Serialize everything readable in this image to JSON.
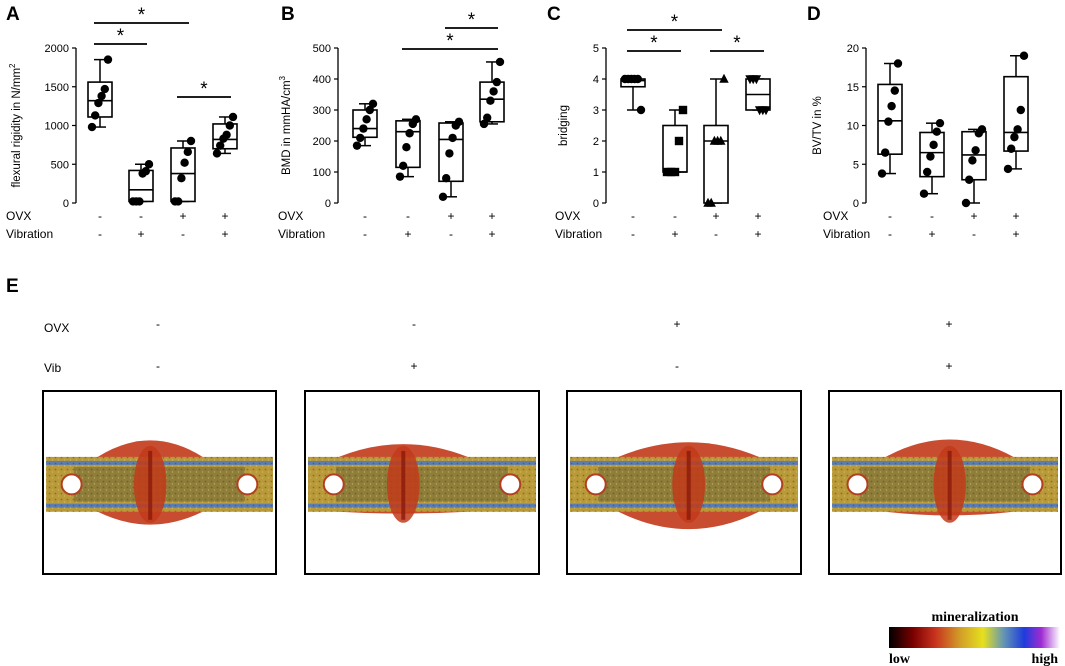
{
  "chart_data": [
    {
      "type": "boxplot",
      "panel": "A",
      "ylabel": "flexural rigidity in N/mm",
      "ylabel_superscript": "2",
      "ylim": [
        0,
        2000
      ],
      "yticks": [
        "0",
        "500",
        "1000",
        "1500",
        "2000"
      ],
      "conditions": [
        {
          "label": "OVX",
          "values": [
            "-",
            "-",
            "+",
            "+"
          ]
        },
        {
          "label": "Vibration",
          "values": [
            "-",
            "+",
            "-",
            "+"
          ]
        }
      ],
      "groups": [
        {
          "min": 980,
          "q1": 1110,
          "median": 1320,
          "q3": 1560,
          "max": 1850,
          "points": [
            980,
            1130,
            1290,
            1380,
            1470,
            1850
          ],
          "marker": "circle"
        },
        {
          "min": 20,
          "q1": 20,
          "median": 170,
          "q3": 420,
          "max": 500,
          "points": [
            20,
            20,
            20,
            380,
            410,
            500
          ],
          "marker": "circle"
        },
        {
          "min": 20,
          "q1": 20,
          "median": 380,
          "q3": 710,
          "max": 800,
          "points": [
            20,
            20,
            320,
            520,
            660,
            800
          ],
          "marker": "circle"
        },
        {
          "min": 640,
          "q1": 700,
          "median": 820,
          "q3": 1020,
          "max": 1110,
          "points": [
            640,
            740,
            830,
            880,
            1000,
            1110
          ],
          "marker": "circle"
        }
      ],
      "significance": [
        {
          "from": 1,
          "to": 2,
          "label": "*"
        },
        {
          "from": 1,
          "to": 3,
          "label": "*"
        },
        {
          "from": 3,
          "to": 4,
          "label": "*"
        }
      ]
    },
    {
      "type": "boxplot",
      "panel": "B",
      "ylabel": "BMD in mmHA/cm",
      "ylabel_superscript": "3",
      "ylim": [
        0,
        500
      ],
      "yticks": [
        "0",
        "100",
        "200",
        "300",
        "400",
        "500"
      ],
      "conditions": [
        {
          "label": "OVX",
          "values": [
            "-",
            "-",
            "+",
            "+"
          ]
        },
        {
          "label": "Vibration",
          "values": [
            "-",
            "+",
            "-",
            "+"
          ]
        }
      ],
      "groups": [
        {
          "min": 185,
          "q1": 212,
          "median": 240,
          "q3": 300,
          "max": 320,
          "points": [
            185,
            210,
            240,
            270,
            300,
            320
          ],
          "marker": "circle"
        },
        {
          "min": 85,
          "q1": 115,
          "median": 230,
          "q3": 265,
          "max": 270,
          "points": [
            85,
            120,
            180,
            225,
            255,
            270
          ],
          "marker": "circle"
        },
        {
          "min": 20,
          "q1": 70,
          "median": 205,
          "q3": 258,
          "max": 262,
          "points": [
            20,
            80,
            160,
            210,
            250,
            262
          ],
          "marker": "circle"
        },
        {
          "min": 255,
          "q1": 262,
          "median": 335,
          "q3": 390,
          "max": 455,
          "points": [
            255,
            275,
            330,
            360,
            390,
            455
          ],
          "marker": "circle"
        }
      ],
      "significance": [
        {
          "from": 3,
          "to": 4,
          "label": "*"
        },
        {
          "from": 2,
          "to": 4,
          "label": "*"
        }
      ]
    },
    {
      "type": "boxplot",
      "panel": "C",
      "ylabel": "bridging",
      "ylabel_superscript": "",
      "ylim": [
        0,
        5
      ],
      "yticks": [
        "0",
        "1",
        "2",
        "3",
        "4",
        "5"
      ],
      "conditions": [
        {
          "label": "OVX",
          "values": [
            "-",
            "-",
            "+",
            "+"
          ]
        },
        {
          "label": "Vibration",
          "values": [
            "-",
            "+",
            "-",
            "+"
          ]
        }
      ],
      "groups": [
        {
          "min": 3,
          "q1": 3.75,
          "median": 3.95,
          "q3": 4,
          "max": 4,
          "points": [
            4,
            4,
            4,
            4,
            4,
            3
          ],
          "marker": "circle"
        },
        {
          "min": 1,
          "q1": 1,
          "median": 1,
          "q3": 2.5,
          "max": 3,
          "points": [
            1,
            1,
            1,
            2,
            3
          ],
          "marker": "square"
        },
        {
          "min": 0,
          "q1": 0,
          "median": 2,
          "q3": 2.5,
          "max": 4,
          "points": [
            0,
            0,
            2,
            2,
            2,
            4
          ],
          "marker": "triangle-up"
        },
        {
          "min": 3,
          "q1": 3,
          "median": 3.5,
          "q3": 4,
          "max": 4,
          "points": [
            4,
            4,
            4,
            3,
            3,
            3
          ],
          "marker": "triangle-down"
        }
      ],
      "significance": [
        {
          "from": 1,
          "to": 2,
          "label": "*"
        },
        {
          "from": 1,
          "to": 3,
          "label": "*"
        },
        {
          "from": 3,
          "to": 4,
          "label": "*"
        }
      ]
    },
    {
      "type": "boxplot",
      "panel": "D",
      "ylabel": "BV/TV in %",
      "ylabel_superscript": "",
      "ylim": [
        0,
        20
      ],
      "yticks": [
        "0",
        "5",
        "10",
        "15",
        "20"
      ],
      "conditions": [
        {
          "label": "OVX",
          "values": [
            "-",
            "-",
            "+",
            "+"
          ]
        },
        {
          "label": "Vibration",
          "values": [
            "-",
            "+",
            "-",
            "+"
          ]
        }
      ],
      "groups": [
        {
          "min": 3.8,
          "q1": 6.3,
          "median": 10.6,
          "q3": 15.3,
          "max": 18,
          "points": [
            3.8,
            6.5,
            10.5,
            12.5,
            14.5,
            18
          ],
          "marker": "circle"
        },
        {
          "min": 1.2,
          "q1": 3.4,
          "median": 6.5,
          "q3": 9.1,
          "max": 10.3,
          "points": [
            1.2,
            4,
            6,
            7.5,
            9.2,
            10.3
          ],
          "marker": "circle"
        },
        {
          "min": 0,
          "q1": 3,
          "median": 6.2,
          "q3": 9.2,
          "max": 9.5,
          "points": [
            0,
            3,
            5.5,
            6.8,
            9,
            9.5
          ],
          "marker": "circle"
        },
        {
          "min": 4.4,
          "q1": 6.7,
          "median": 9.1,
          "q3": 16.3,
          "max": 19,
          "points": [
            4.4,
            7,
            8.5,
            9.5,
            12,
            19
          ],
          "marker": "circle"
        }
      ],
      "significance": []
    }
  ],
  "panels": {
    "A": "A",
    "B": "B",
    "C": "C",
    "D": "D",
    "E": "E"
  },
  "panel_e": {
    "row_labels": {
      "ovx": "OVX",
      "vib": "Vib"
    },
    "columns": [
      {
        "ovx": "-",
        "vib": "-"
      },
      {
        "ovx": "-",
        "vib": "+"
      },
      {
        "ovx": "+",
        "vib": "-"
      },
      {
        "ovx": "+",
        "vib": "+"
      }
    ],
    "legend": {
      "title": "mineralization",
      "low": "low",
      "high": "high"
    },
    "colors": {
      "bone_gold": "#b89a3a",
      "bone_yellow": "#d9c24a",
      "callus_red": "#c23a1a",
      "cortex_blue": "#4a78c8",
      "marrow_olive": "#8a7a3c",
      "gradient": [
        "#000000",
        "#7a0000",
        "#c8321e",
        "#d2a028",
        "#e6e01e",
        "#6496b4",
        "#1e3cdc",
        "#a02ad2",
        "#ffffff"
      ]
    }
  }
}
